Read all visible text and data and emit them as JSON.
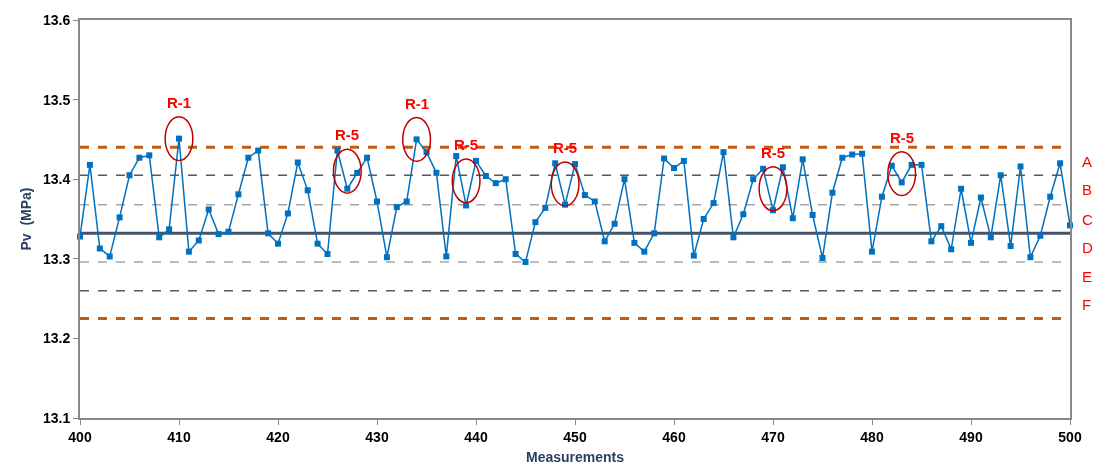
{
  "chart_data": {
    "type": "line",
    "xlabel": "Measurements",
    "ylabel": "Pv  (MPa)",
    "x": [
      400,
      401,
      402,
      403,
      404,
      405,
      406,
      407,
      408,
      409,
      410,
      411,
      412,
      413,
      414,
      415,
      416,
      417,
      418,
      419,
      420,
      421,
      422,
      423,
      424,
      425,
      426,
      427,
      428,
      429,
      430,
      431,
      432,
      433,
      434,
      435,
      436,
      437,
      438,
      439,
      440,
      441,
      442,
      443,
      444,
      445,
      446,
      447,
      448,
      449,
      450,
      451,
      452,
      453,
      454,
      455,
      456,
      457,
      458,
      459,
      460,
      461,
      462,
      463,
      464,
      465,
      466,
      467,
      468,
      469,
      470,
      471,
      472,
      473,
      474,
      475,
      476,
      477,
      478,
      479,
      480,
      481,
      482,
      483,
      484,
      485,
      486,
      487,
      488,
      489,
      490,
      491,
      492,
      493,
      494,
      495,
      496,
      497,
      498,
      499,
      500
    ],
    "series": [
      {
        "color": "#0070c0",
        "values": [
          13.328,
          13.418,
          13.313,
          13.303,
          13.352,
          13.405,
          13.427,
          13.43,
          13.327,
          13.337,
          13.451,
          13.309,
          13.323,
          13.362,
          13.331,
          13.334,
          13.381,
          13.427,
          13.436,
          13.332,
          13.319,
          13.357,
          13.421,
          13.386,
          13.319,
          13.306,
          13.436,
          13.388,
          13.408,
          13.427,
          13.372,
          13.302,
          13.365,
          13.372,
          13.45,
          13.434,
          13.408,
          13.303,
          13.429,
          13.367,
          13.423,
          13.404,
          13.395,
          13.4,
          13.306,
          13.296,
          13.346,
          13.364,
          13.42,
          13.368,
          13.419,
          13.38,
          13.372,
          13.322,
          13.344,
          13.4,
          13.32,
          13.309,
          13.332,
          13.426,
          13.414,
          13.423,
          13.304,
          13.35,
          13.37,
          13.434,
          13.327,
          13.356,
          13.4,
          13.413,
          13.361,
          13.415,
          13.351,
          13.425,
          13.355,
          13.301,
          13.383,
          13.427,
          13.431,
          13.432,
          13.309,
          13.378,
          13.417,
          13.396,
          13.418,
          13.418,
          13.322,
          13.341,
          13.312,
          13.388,
          13.32,
          13.377,
          13.327,
          13.405,
          13.316,
          13.416,
          13.302,
          13.329,
          13.378,
          13.42,
          13.342
        ]
      }
    ],
    "xlim": [
      400,
      500
    ],
    "xticks": [
      400,
      410,
      420,
      430,
      440,
      450,
      460,
      470,
      480,
      490,
      500
    ],
    "ylim": [
      13.1,
      13.6
    ],
    "yticks": [
      13.1,
      13.2,
      13.3,
      13.4,
      13.5,
      13.6
    ],
    "grid": false,
    "marker": "square",
    "line_style": "solid",
    "ref_lines": [
      {
        "axis": "y",
        "value": 13.44,
        "color": "#c55a11",
        "line_style": "dashed"
      },
      {
        "axis": "y",
        "value": 13.405,
        "color": "#595959",
        "line_style": "dashed"
      },
      {
        "axis": "y",
        "value": 13.368,
        "color": "#a6a6a6",
        "line_style": "dashed"
      },
      {
        "axis": "y",
        "value": 13.332,
        "color": "#44546a",
        "line_style": "solid"
      },
      {
        "axis": "y",
        "value": 13.296,
        "color": "#a6a6a6",
        "line_style": "dashed"
      },
      {
        "axis": "y",
        "value": 13.26,
        "color": "#595959",
        "line_style": "dashed"
      },
      {
        "axis": "y",
        "value": 13.225,
        "color": "#c55a11",
        "line_style": "dashed"
      }
    ],
    "annotations": [
      "A",
      "B",
      "C",
      "D",
      "E",
      "F",
      {
        "text": "R-1",
        "x": 410,
        "y": 13.451
      },
      {
        "text": "R-5",
        "x": 427,
        "y": 13.41
      },
      {
        "text": "R-1",
        "x": 434,
        "y": 13.45
      },
      {
        "text": "R-5",
        "x": 439,
        "y": 13.398
      },
      {
        "text": "R-5",
        "x": 449,
        "y": 13.394
      },
      {
        "text": "R-5",
        "x": 470,
        "y": 13.388
      },
      {
        "text": "R-5",
        "x": 483,
        "y": 13.407
      }
    ]
  }
}
